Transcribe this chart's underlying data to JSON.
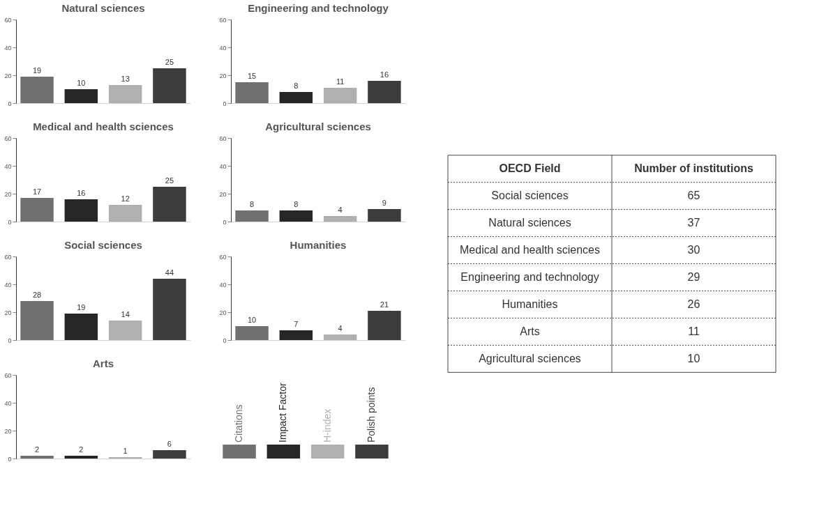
{
  "chart_data": [
    {
      "type": "bar",
      "title": "Natural sciences",
      "categories": [
        null
      ],
      "series": [
        {
          "color": "#707070",
          "values": [
            19
          ]
        },
        {
          "color": "#262626",
          "values": [
            10
          ]
        },
        {
          "color": "#b0b0b0",
          "values": [
            13
          ]
        },
        {
          "color": "#3c3c3c",
          "values": [
            25
          ]
        }
      ],
      "ylim": [
        0,
        60
      ],
      "yticks": [
        0,
        20,
        40,
        60
      ],
      "data_labels": true,
      "tick_labels": "y"
    },
    {
      "type": "bar",
      "title": "Engineering and technology",
      "categories": [
        null
      ],
      "series": [
        {
          "color": "#707070",
          "values": [
            15
          ]
        },
        {
          "color": "#262626",
          "values": [
            8
          ]
        },
        {
          "color": "#b0b0b0",
          "values": [
            11
          ]
        },
        {
          "color": "#3c3c3c",
          "values": [
            16
          ]
        }
      ],
      "ylim": [
        0,
        60
      ],
      "yticks": [
        0,
        20,
        40,
        60
      ],
      "data_labels": true,
      "tick_labels": "y"
    },
    {
      "type": "bar",
      "title": "Medical and health sciences",
      "categories": [
        null
      ],
      "series": [
        {
          "color": "#707070",
          "values": [
            17
          ]
        },
        {
          "color": "#262626",
          "values": [
            16
          ]
        },
        {
          "color": "#b0b0b0",
          "values": [
            12
          ]
        },
        {
          "color": "#3c3c3c",
          "values": [
            25
          ]
        }
      ],
      "ylim": [
        0,
        60
      ],
      "yticks": [
        0,
        20,
        40,
        60
      ],
      "data_labels": true,
      "tick_labels": "y"
    },
    {
      "type": "bar",
      "title": "Agricultural sciences",
      "categories": [
        null
      ],
      "series": [
        {
          "color": "#707070",
          "values": [
            8
          ]
        },
        {
          "color": "#262626",
          "values": [
            8
          ]
        },
        {
          "color": "#b0b0b0",
          "values": [
            4
          ]
        },
        {
          "color": "#3c3c3c",
          "values": [
            9
          ]
        }
      ],
      "ylim": [
        0,
        60
      ],
      "yticks": [
        0,
        20,
        40,
        60
      ],
      "data_labels": true,
      "tick_labels": "y"
    },
    {
      "type": "bar",
      "title": "Social sciences",
      "categories": [
        null
      ],
      "series": [
        {
          "color": "#707070",
          "values": [
            28
          ]
        },
        {
          "color": "#262626",
          "values": [
            19
          ]
        },
        {
          "color": "#b0b0b0",
          "values": [
            14
          ]
        },
        {
          "color": "#3c3c3c",
          "values": [
            44
          ]
        }
      ],
      "ylim": [
        0,
        60
      ],
      "yticks": [
        0,
        20,
        40,
        60
      ],
      "data_labels": true,
      "tick_labels": "y"
    },
    {
      "type": "bar",
      "title": "Humanities",
      "categories": [
        null
      ],
      "series": [
        {
          "color": "#707070",
          "values": [
            10
          ]
        },
        {
          "color": "#262626",
          "values": [
            7
          ]
        },
        {
          "color": "#b0b0b0",
          "values": [
            4
          ]
        },
        {
          "color": "#3c3c3c",
          "values": [
            21
          ]
        }
      ],
      "ylim": [
        0,
        60
      ],
      "yticks": [
        0,
        20,
        40,
        60
      ],
      "data_labels": true,
      "tick_labels": "y"
    },
    {
      "type": "bar",
      "title": "Arts",
      "categories": [
        null
      ],
      "series": [
        {
          "name": "Citations",
          "color": "#707070",
          "values": [
            2
          ]
        },
        {
          "name": "Impact Factor",
          "color": "#262626",
          "values": [
            2
          ]
        },
        {
          "name": "H-index",
          "color": "#b0b0b0",
          "values": [
            1
          ]
        },
        {
          "name": "Polish points",
          "color": "#3c3c3c",
          "values": [
            6
          ]
        }
      ],
      "ylim": [
        0,
        60
      ],
      "yticks": [
        0,
        20,
        40,
        60
      ],
      "data_labels": true,
      "tick_labels": "y",
      "legend": "right"
    },
    {
      "type": "other",
      "xlabel": "OECD Field",
      "ylabel": "Number of institutions",
      "categories": [
        "Social sciences",
        "Natural sciences",
        "Medical and health sciences",
        "Engineering and technology",
        "Humanities",
        "Arts",
        "Agricultural sciences"
      ],
      "values": [
        65,
        37,
        30,
        29,
        26,
        11,
        10
      ],
      "data_labels": true
    }
  ]
}
